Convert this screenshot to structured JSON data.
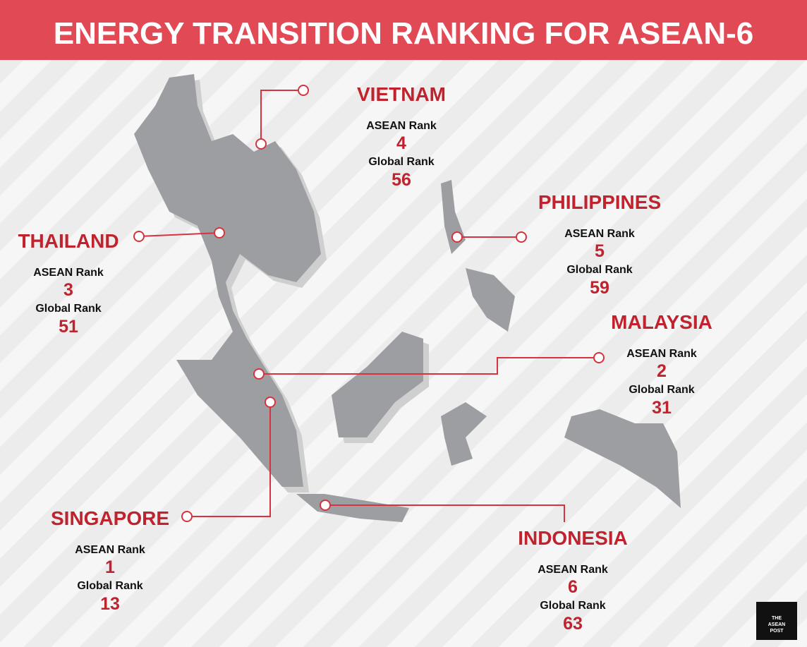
{
  "header": {
    "title": "ENERGY TRANSITION RANKING FOR ASEAN-6"
  },
  "countries": [
    {
      "name": "VIETNAM",
      "asean_label": "ASEAN Rank",
      "asean_rank": "4",
      "global_label": "Global Rank",
      "global_rank": "56"
    },
    {
      "name": "PHILIPPINES",
      "asean_label": "ASEAN Rank",
      "asean_rank": "5",
      "global_label": "Global Rank",
      "global_rank": "59"
    },
    {
      "name": "THAILAND",
      "asean_label": "ASEAN Rank",
      "asean_rank": "3",
      "global_label": "Global Rank",
      "global_rank": "51"
    },
    {
      "name": "MALAYSIA",
      "asean_label": "ASEAN Rank",
      "asean_rank": "2",
      "global_label": "Global Rank",
      "global_rank": "31"
    },
    {
      "name": "SINGAPORE",
      "asean_label": "ASEAN Rank",
      "asean_rank": "1",
      "global_label": "Global Rank",
      "global_rank": "13"
    },
    {
      "name": "INDONESIA",
      "asean_label": "ASEAN Rank",
      "asean_rank": "6",
      "global_label": "Global Rank",
      "global_rank": "63"
    }
  ],
  "logo": {
    "line1": "THE",
    "line2": "ASEAN",
    "line3": "POST"
  }
}
